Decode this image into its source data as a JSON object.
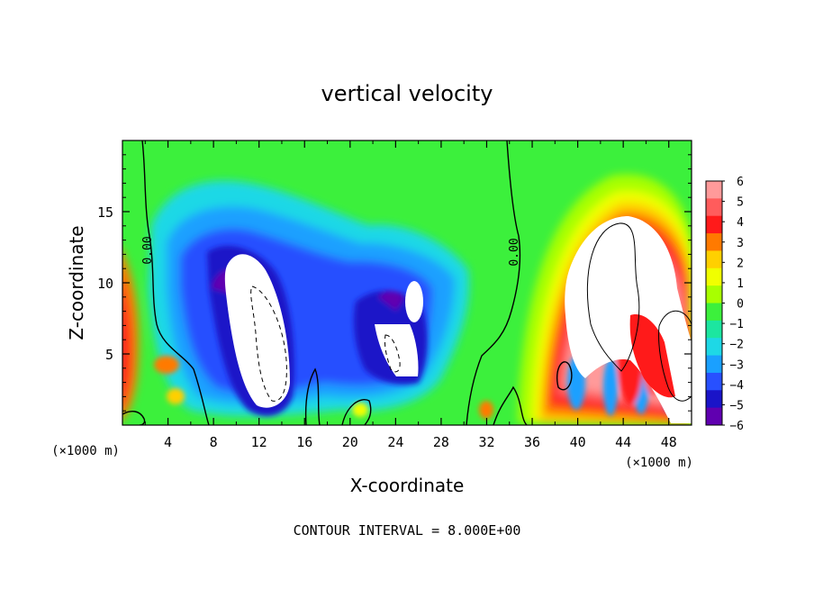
{
  "chart_data": {
    "type": "heatmap",
    "title": "vertical velocity",
    "xlabel": "X-coordinate",
    "ylabel": "Z-coordinate",
    "x_unit": "(×1000 m)",
    "footer": "CONTOUR INTERVAL = 8.000E+00",
    "xlim": [
      0,
      50
    ],
    "ylim": [
      0,
      20
    ],
    "xticks": [
      "4",
      "8",
      "12",
      "16",
      "20",
      "24",
      "28",
      "32",
      "36",
      "40",
      "44",
      "48"
    ],
    "yticks": [
      "5",
      "10",
      "15"
    ],
    "zero_contour_label": "0.00",
    "colorbar": {
      "levels": [
        "6",
        "5",
        "4",
        "3",
        "2",
        "1",
        "0",
        "−1",
        "−2",
        "−3",
        "−4",
        "−5",
        "−6"
      ],
      "colors": [
        "#ff9a9a",
        "#ff5c5c",
        "#ff1a1a",
        "#ff7a00",
        "#ffd000",
        "#f0ff00",
        "#a8ff00",
        "#3cf03c",
        "#1ce6a0",
        "#1ed8e6",
        "#1aa0ff",
        "#2850ff",
        "#1a14c8",
        "#6000b0"
      ]
    },
    "features": [
      {
        "kind": "updraft_core",
        "region": "right",
        "x_range": [
          36,
          50
        ],
        "z_range": [
          3,
          14
        ]
      },
      {
        "kind": "downdraft_core",
        "region": "left",
        "x_range": [
          9,
          15
        ],
        "z_range": [
          1,
          12
        ]
      },
      {
        "kind": "downdraft_core",
        "region": "center",
        "x_range": [
          22,
          27
        ],
        "z_range": [
          3,
          10
        ]
      }
    ]
  }
}
